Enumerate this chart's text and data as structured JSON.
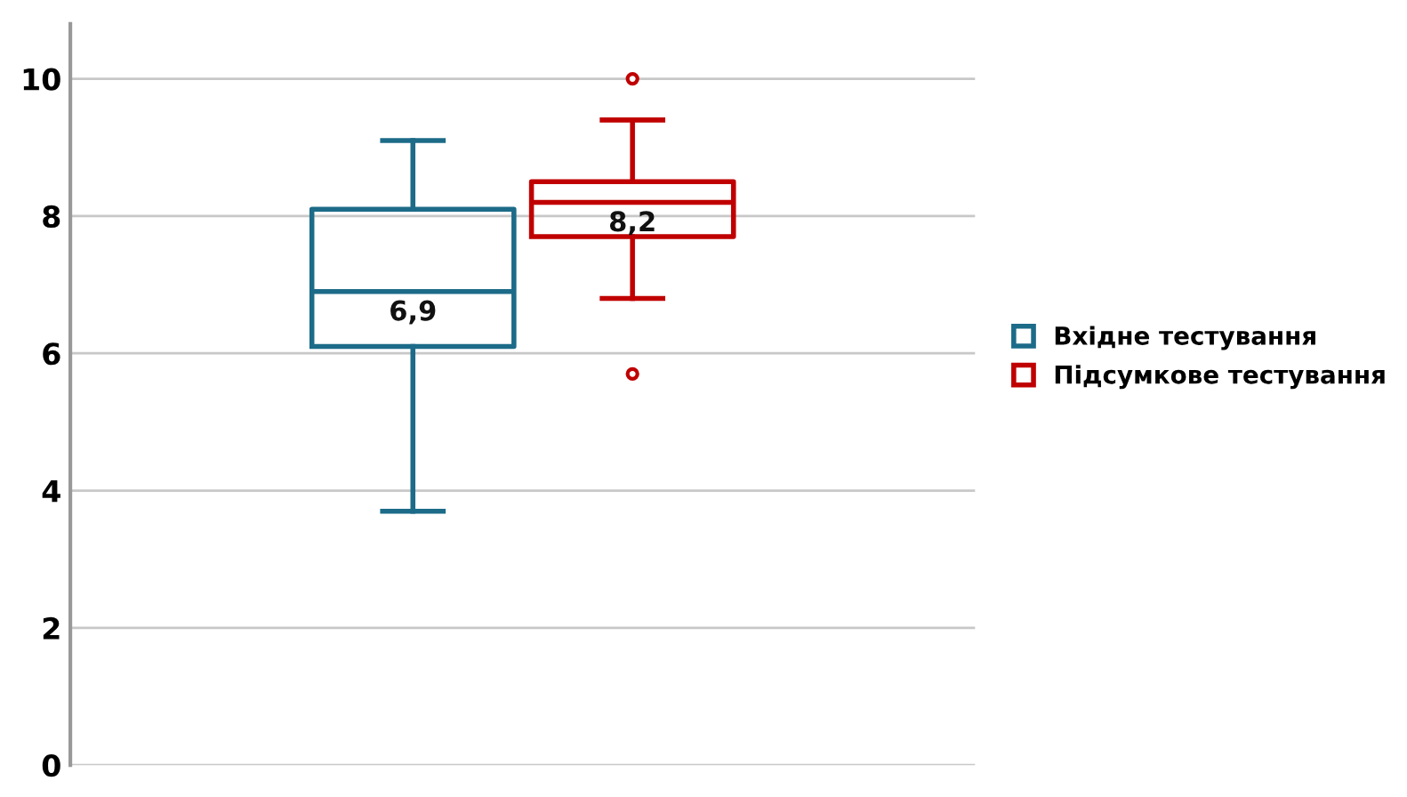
{
  "chart_data": {
    "type": "box",
    "categories": [
      null
    ],
    "series": [
      {
        "name": "Вхідне тестування",
        "color": "#1c6b88",
        "boxes": [
          {
            "low": 3.7,
            "q1": 6.1,
            "median": 6.9,
            "q3": 8.1,
            "high": 9.1
          }
        ],
        "value_labels": [
          "6,9"
        ]
      },
      {
        "name": "Підсумкове тестування",
        "color": "#c00000",
        "boxes": [
          {
            "low": 6.8,
            "q1": 7.7,
            "median": 8.2,
            "q3": 8.5,
            "high": 9.4,
            "outliers": [
              10.0,
              5.7
            ]
          }
        ],
        "value_labels": [
          "8,2"
        ]
      }
    ],
    "ylim": [
      0,
      10.8
    ],
    "yticks": [
      0,
      2,
      4,
      6,
      8,
      10
    ],
    "grid": "y",
    "legend": "right",
    "tick_labels": "y"
  }
}
